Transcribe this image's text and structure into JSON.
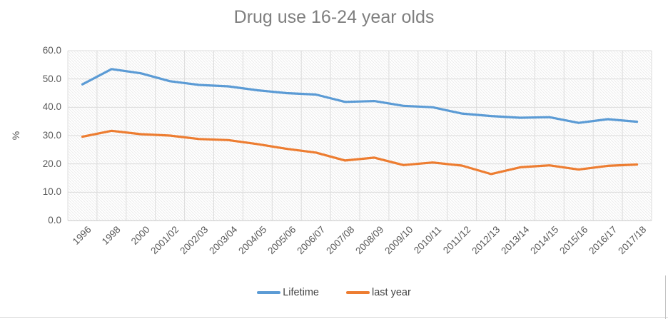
{
  "title": "Drug use 16-24 year olds",
  "chart_data": {
    "type": "line",
    "title": "Drug use 16-24 year olds",
    "categories": [
      "1996",
      "1998",
      "2000",
      "2001/02",
      "2002/03",
      "2003/04",
      "2004/05",
      "2005/06",
      "2006/07",
      "2007/08",
      "2008/09",
      "2009/10",
      "2010/11",
      "2011/12",
      "2012/13",
      "2013/14",
      "2014/15",
      "2015/16",
      "2016/17",
      "2017/18"
    ],
    "series": [
      {
        "name": "Lifetime",
        "color": "#5B9BD5",
        "values": [
          48.1,
          53.5,
          52.0,
          49.2,
          47.9,
          47.4,
          46.0,
          45.0,
          44.5,
          41.9,
          42.2,
          40.5,
          40.0,
          37.8,
          36.9,
          36.3,
          36.5,
          34.5,
          35.8,
          34.9
        ]
      },
      {
        "name": "last year",
        "color": "#ED7D31",
        "values": [
          29.6,
          31.7,
          30.5,
          30.0,
          28.8,
          28.4,
          27.0,
          25.3,
          24.0,
          21.2,
          22.2,
          19.6,
          20.5,
          19.4,
          16.4,
          18.8,
          19.5,
          18.0,
          19.3,
          19.8
        ]
      }
    ],
    "xlabel": "",
    "ylabel": "%",
    "ylim": [
      0,
      60
    ],
    "y_ticks": [
      60,
      50,
      40,
      30,
      20,
      10,
      0
    ],
    "y_tick_labels": [
      "60.0",
      "50.0",
      "40.0",
      "30.0",
      "20.0",
      "10.0",
      "0.0"
    ],
    "grid": "both",
    "legend_position": "bottom",
    "plot_background": "diagonal-hatch"
  },
  "colors": {
    "title_text": "#7f7f7f",
    "axis_text": "#595959",
    "gridline": "#dcdcdc",
    "hatch": "#ebebeb",
    "series_blue": "#5B9BD5",
    "series_orange": "#ED7D31"
  }
}
